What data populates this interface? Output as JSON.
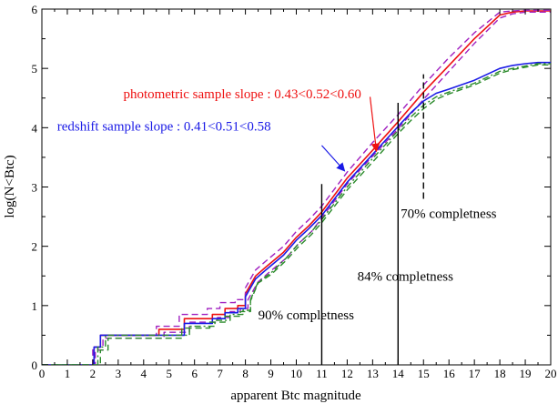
{
  "chart_data": {
    "type": "line",
    "xlabel": "apparent Btc magnitude",
    "ylabel": "log(N<Btc)",
    "xlim": [
      0,
      20
    ],
    "ylim": [
      0,
      6
    ],
    "xticks": [
      0,
      1,
      2,
      3,
      4,
      5,
      6,
      7,
      8,
      9,
      10,
      11,
      12,
      13,
      14,
      15,
      16,
      17,
      18,
      19,
      20
    ],
    "yticks": [
      0,
      1,
      2,
      3,
      4,
      5,
      6
    ],
    "grid": false,
    "colors": {
      "red": "#ee1111",
      "blue": "#1a1ae6",
      "purple": "#a020c0",
      "green": "#2a8a2a",
      "black": "#000000"
    },
    "series": [
      {
        "color": "red",
        "style": "solid",
        "x": [
          0,
          2.05,
          2.05,
          2.3,
          2.3,
          4.6,
          4.6,
          5.6,
          5.6,
          6.7,
          6.7,
          7.2,
          7.2,
          7.7,
          7.7,
          8.0,
          8.0,
          8.4,
          8.8,
          9.5,
          10.0,
          10.5,
          11,
          12,
          13,
          14,
          15,
          16,
          17,
          18,
          18.5,
          19,
          20
        ],
        "y": [
          0,
          0,
          0.3,
          0.3,
          0.5,
          0.5,
          0.6,
          0.6,
          0.78,
          0.78,
          0.85,
          0.85,
          0.95,
          0.95,
          1.0,
          1.0,
          1.2,
          1.5,
          1.65,
          1.9,
          2.15,
          2.35,
          2.58,
          3.15,
          3.62,
          4.1,
          4.6,
          5.05,
          5.5,
          5.9,
          5.95,
          5.97,
          5.97
        ]
      },
      {
        "color": "purple",
        "style": "dashed",
        "x": [
          0,
          2.0,
          2.0,
          2.3,
          2.3,
          4.5,
          4.5,
          5.4,
          5.4,
          6.5,
          6.5,
          7.0,
          7.0,
          7.6,
          7.6,
          8.0,
          8.0,
          8.4,
          8.8,
          9.5,
          10.0,
          10.5,
          11,
          12,
          13,
          14,
          15,
          16,
          17,
          18,
          18.5,
          19,
          20
        ],
        "y": [
          0,
          0,
          0.3,
          0.3,
          0.5,
          0.5,
          0.65,
          0.65,
          0.85,
          0.85,
          0.95,
          0.95,
          1.05,
          1.05,
          1.1,
          1.1,
          1.3,
          1.6,
          1.75,
          2.0,
          2.25,
          2.45,
          2.68,
          3.25,
          3.75,
          4.22,
          4.72,
          5.18,
          5.6,
          5.95,
          5.97,
          5.98,
          5.98
        ]
      },
      {
        "color": "purple",
        "style": "dashed",
        "x": [
          0,
          2.1,
          2.1,
          2.4,
          2.4,
          4.8,
          4.8,
          5.8,
          5.8,
          6.9,
          6.9,
          7.4,
          7.4,
          7.8,
          7.8,
          8.1,
          8.1,
          8.5,
          8.9,
          9.6,
          10.1,
          10.6,
          11,
          12,
          13,
          14,
          15,
          16,
          17,
          18,
          18.5,
          19,
          20
        ],
        "y": [
          0,
          0,
          0.25,
          0.25,
          0.45,
          0.45,
          0.55,
          0.55,
          0.72,
          0.72,
          0.8,
          0.8,
          0.9,
          0.9,
          0.95,
          0.95,
          1.1,
          1.4,
          1.55,
          1.8,
          2.05,
          2.25,
          2.48,
          3.05,
          3.52,
          3.98,
          4.48,
          4.95,
          5.42,
          5.85,
          5.92,
          5.95,
          5.95
        ]
      },
      {
        "color": "blue",
        "style": "solid",
        "x": [
          0,
          2.05,
          2.05,
          2.3,
          2.3,
          5.6,
          5.6,
          6.7,
          6.7,
          7.2,
          7.2,
          7.7,
          7.7,
          8.0,
          8.0,
          8.4,
          8.8,
          9.5,
          10.0,
          10.5,
          11,
          12,
          13,
          14,
          14.5,
          15,
          15.5,
          16,
          17,
          18,
          18.5,
          19,
          19.5,
          20
        ],
        "y": [
          0,
          0,
          0.3,
          0.3,
          0.5,
          0.5,
          0.7,
          0.7,
          0.78,
          0.78,
          0.88,
          0.88,
          0.95,
          0.95,
          1.15,
          1.45,
          1.6,
          1.85,
          2.1,
          2.3,
          2.52,
          3.08,
          3.55,
          4.02,
          4.25,
          4.45,
          4.58,
          4.65,
          4.8,
          5.0,
          5.05,
          5.08,
          5.1,
          5.1
        ]
      },
      {
        "color": "green",
        "style": "dashdot",
        "x": [
          0,
          2.2,
          2.2,
          2.5,
          2.5,
          5.8,
          5.8,
          6.8,
          6.8,
          7.4,
          7.4,
          7.9,
          7.9,
          8.2,
          8.2,
          8.5,
          9.0,
          9.6,
          10.1,
          10.6,
          11,
          12,
          13,
          14,
          14.5,
          15,
          15.5,
          16,
          17,
          18,
          18.5,
          19,
          19.5,
          20
        ],
        "y": [
          0,
          0,
          0.3,
          0.3,
          0.5,
          0.5,
          0.65,
          0.65,
          0.75,
          0.75,
          0.85,
          0.85,
          0.92,
          0.92,
          1.1,
          1.4,
          1.55,
          1.8,
          2.05,
          2.25,
          2.45,
          3.0,
          3.48,
          3.95,
          4.18,
          4.38,
          4.52,
          4.6,
          4.75,
          4.95,
          5.0,
          5.04,
          5.08,
          5.08
        ]
      },
      {
        "color": "green",
        "style": "dashed",
        "x": [
          0,
          2.3,
          2.3,
          2.6,
          2.6,
          5.5,
          5.5,
          6.6,
          6.6,
          7.2,
          7.2,
          7.8,
          7.8,
          8.2,
          8.2,
          8.5,
          9.0,
          9.6,
          10.1,
          10.6,
          11,
          12,
          13,
          14,
          14.5,
          15,
          15.5,
          16,
          17,
          18,
          18.5,
          19,
          19.5,
          20
        ],
        "y": [
          0,
          0,
          0.25,
          0.25,
          0.45,
          0.45,
          0.62,
          0.62,
          0.72,
          0.72,
          0.82,
          0.82,
          0.9,
          0.9,
          1.08,
          1.38,
          1.52,
          1.76,
          2.0,
          2.2,
          2.4,
          2.95,
          3.42,
          3.9,
          4.12,
          4.32,
          4.48,
          4.57,
          4.72,
          4.92,
          4.98,
          5.02,
          5.06,
          5.06
        ]
      }
    ],
    "annotations": [
      {
        "text": "photometric sample slope : 0.43<0.52<0.60",
        "color": "red",
        "x": 3.2,
        "y": 4.5
      },
      {
        "text": "redshift sample slope : 0.41<0.51<0.58",
        "color": "blue",
        "x": 0.6,
        "y": 3.95
      },
      {
        "text": "70% completness",
        "color": "black",
        "x": 14.1,
        "y": 2.48
      },
      {
        "text": "84% completness",
        "color": "black",
        "x": 12.4,
        "y": 1.42
      },
      {
        "text": "90% completness",
        "color": "black",
        "x": 8.5,
        "y": 0.77
      }
    ],
    "arrows": [
      {
        "color": "red",
        "from": [
          12.9,
          4.52
        ],
        "to": [
          13.15,
          3.6
        ]
      },
      {
        "color": "blue",
        "from": [
          11.0,
          3.7
        ],
        "to": [
          11.9,
          3.27
        ]
      }
    ],
    "vlines": [
      {
        "x": 11,
        "y0": 0,
        "y1": 3.05,
        "style": "solid"
      },
      {
        "x": 14,
        "y0": 0,
        "y1": 4.42,
        "style": "solid"
      },
      {
        "x": 15,
        "y0": 2.8,
        "y1": 4.9,
        "style": "dashed"
      }
    ]
  }
}
